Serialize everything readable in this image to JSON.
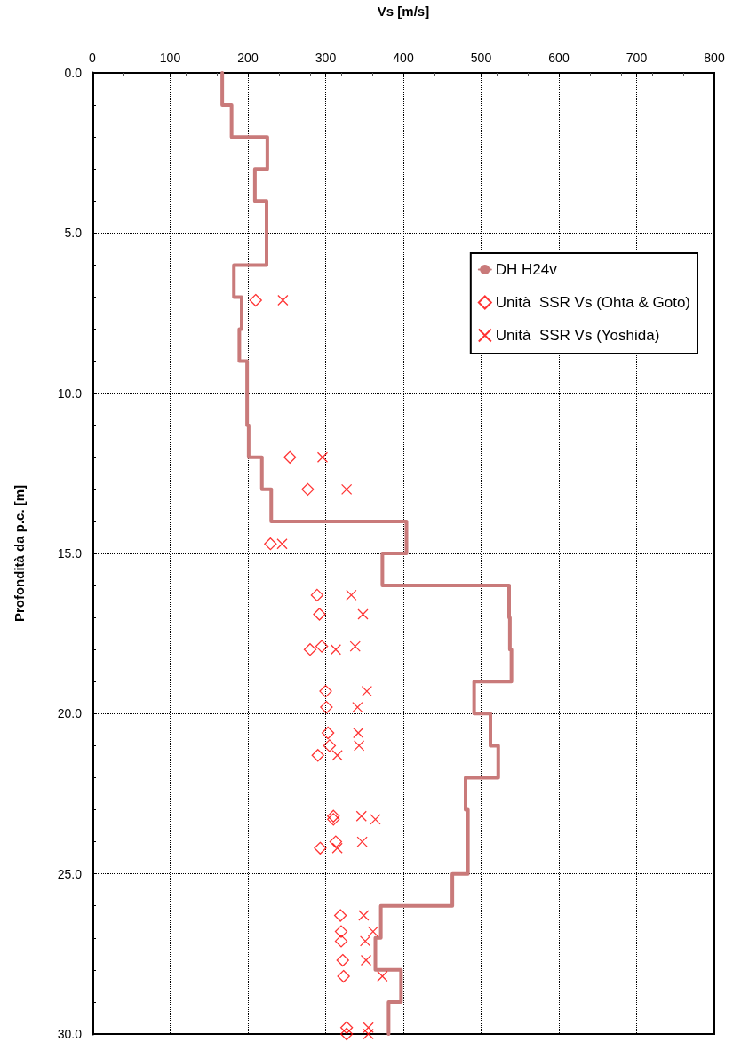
{
  "chart_data": {
    "type": "scatter",
    "xlabel": "Vs [m/s]",
    "ylabel": "Profondità da p.c. [m]",
    "xlim": [
      0,
      800
    ],
    "xticks": [
      0,
      100,
      200,
      300,
      400,
      500,
      600,
      700,
      800
    ],
    "ylim": [
      30,
      0
    ],
    "yticks": [
      {
        "value": 0,
        "label": "0.0"
      },
      {
        "value": 5,
        "label": "5.0"
      },
      {
        "value": 10,
        "label": "10.0"
      },
      {
        "value": 15,
        "label": "15.0"
      },
      {
        "value": 20,
        "label": "20.0"
      },
      {
        "value": 25,
        "label": "25.0"
      },
      {
        "value": 30,
        "label": "30.0"
      }
    ],
    "grid": true,
    "legend": "top right",
    "series": [
      {
        "name": "DH H24v",
        "type": "line",
        "marker": "none",
        "line_style": "solid",
        "color": "#c97a7a",
        "x": [
          167,
          167,
          179,
          179,
          225,
          225,
          209,
          209,
          224,
          224,
          182,
          182,
          192,
          192,
          189,
          189,
          199,
          199,
          201,
          201,
          218,
          218,
          230,
          230,
          404,
          404,
          373,
          373,
          536,
          536,
          537,
          537,
          539,
          539,
          491,
          491,
          512,
          512,
          522,
          522,
          480,
          480,
          483,
          483,
          463,
          463,
          371,
          371,
          364,
          364,
          397,
          397,
          381,
          381
        ],
        "values": [
          0,
          1,
          1,
          2,
          2,
          3,
          3,
          4,
          4,
          6,
          6,
          7,
          7,
          8,
          8,
          9,
          9,
          11,
          11,
          12,
          12,
          13,
          13,
          14,
          14,
          15,
          15,
          16,
          16,
          17,
          17,
          18,
          18,
          19,
          19,
          20,
          20,
          21,
          21,
          22,
          22,
          23,
          23,
          25,
          25,
          26,
          26,
          27,
          27,
          28,
          28,
          29,
          29,
          30
        ]
      },
      {
        "name": "Unità  SSR Vs (Ohta & Goto)",
        "type": "scatter",
        "marker": "diamond",
        "color": "#ff0000",
        "x": [
          210,
          254,
          277,
          229,
          289,
          292,
          280,
          295,
          300,
          301,
          303,
          305,
          290,
          310,
          310,
          313,
          293,
          319,
          320,
          320,
          322,
          323,
          327,
          327
        ],
        "values": [
          7.1,
          12.0,
          13.0,
          14.7,
          16.3,
          16.9,
          18.0,
          17.9,
          19.3,
          19.8,
          20.6,
          21.0,
          21.3,
          23.2,
          23.3,
          24.0,
          24.2,
          26.3,
          26.8,
          27.1,
          27.7,
          28.2,
          29.8,
          30.0
        ]
      },
      {
        "name": "Unità  SSR Vs (Yoshida)",
        "type": "scatter",
        "marker": "cross",
        "color": "#ff0000",
        "x": [
          245,
          296,
          327,
          244,
          333,
          348,
          313,
          338,
          353,
          341,
          342,
          343,
          315,
          346,
          364,
          347,
          315,
          349,
          361,
          351,
          352,
          373,
          355,
          355
        ],
        "values": [
          7.1,
          12.0,
          13.0,
          14.7,
          16.3,
          16.9,
          18.0,
          17.9,
          19.3,
          19.8,
          20.6,
          21.0,
          21.3,
          23.2,
          23.3,
          24.0,
          24.2,
          26.3,
          26.8,
          27.1,
          27.7,
          28.2,
          29.8,
          30.0
        ]
      }
    ]
  }
}
